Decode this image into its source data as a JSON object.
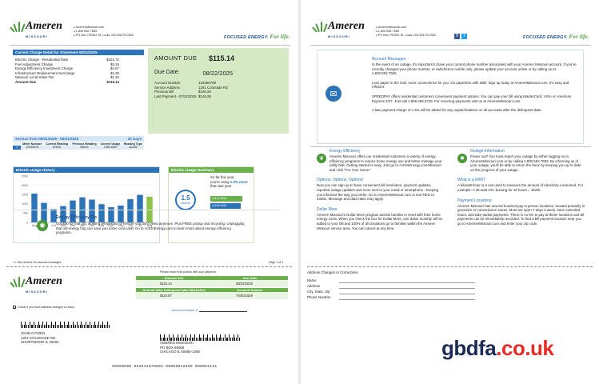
{
  "brand": {
    "name": "Ameren",
    "sub": "MISSOURI",
    "tagline_prefix": "FOCUSED ENERGY.",
    "tagline_suffix": "For life.",
    "green": "#4a9a3a",
    "blue": "#2c73b8"
  },
  "contact": [
    "AmerenMissouri.com",
    "1.800.552.7583",
    "PO Box 790352 St. Louis, MO 63179-0352"
  ],
  "current_charges": {
    "title": "Current Charge Detail for Statement 08/31/2025",
    "rows": [
      {
        "label": "Electric Charge - Residential Rate",
        "value": "$101.71"
      },
      {
        "label": "Fuel Adjustment Charge",
        "value": "$5.16"
      },
      {
        "label": "Energy Efficiency Investment Charge",
        "value": "$4.57"
      },
      {
        "label": "Infrastructure Replacement Surcharge",
        "value": "$2.36"
      },
      {
        "label": "Missouri Local Sales Tax",
        "value": "$1.34"
      },
      {
        "label": "Amount Due",
        "value": "$115.14"
      }
    ]
  },
  "summary": {
    "amount_due_label": "AMOUNT DUE",
    "amount_due": "$115.14",
    "due_date_label": "Due Date:",
    "due_date": "08/22/2025",
    "rows": [
      {
        "label": "Account Number",
        "value": "123456789"
      },
      {
        "label": "Service Address",
        "value": "1201 Colonade Rd"
      },
      {
        "label": "Previous Bill",
        "value": "$146.29"
      },
      {
        "label": "Last Payment - 07/22/2025",
        "value": "$146.29"
      }
    ]
  },
  "service": {
    "title": "Service from 08/01/2025 - 08/31/2025",
    "days": "30 Days",
    "headers": [
      "Meter Number",
      "Current Reading",
      "Previous Reading",
      "Current Usage",
      "Reading Type"
    ],
    "row_index": "1",
    "row": [
      "12345678",
      "87816",
      "86432",
      "1384 kWh",
      "Actual"
    ]
  },
  "usage_history": {
    "title": "Electric Usage History"
  },
  "chart_data": {
    "type": "bar",
    "categories": [
      "Aug",
      "Sep",
      "Oct",
      "Nov",
      "Dec",
      "Jan",
      "Feb",
      "Mar",
      "Apr",
      "May",
      "Jun",
      "Jul",
      "Aug"
    ],
    "values": [
      1550,
      1050,
      720,
      880,
      1180,
      1350,
      1230,
      980,
      820,
      910,
      1250,
      1480,
      1384
    ],
    "ylim": [
      0,
      2500
    ],
    "yticks": [
      "2500",
      "2000",
      "1500",
      "1000",
      "500",
      "0"
    ],
    "colors": {
      "bars": "#2c73b8",
      "highlight": "#8bc34a"
    }
  },
  "usage_summary": {
    "title": "Electric Usage Summary",
    "line1": "So far this year,",
    "line2_prefix": "you're using",
    "line2_highlight": "1.5% more",
    "line2_suffix": "than last year",
    "gauge_value": "1.5",
    "gauge_label": "USAGE",
    "bar1": "4,417 kWh",
    "bar2": "4,349 kWh"
  },
  "tip": {
    "title": "Energy Efficiency Tip",
    "text": "Got $50 for that old, working refrigerator or freezer you don't need anymore. Plus FREE pickup and recycling. Unplugging that old energy hog can save you some cool cash! Go to ActOnEnergy.com to learn more about energy efficiency programs."
  },
  "footer": {
    "reverse": ">> See reverse for account messages",
    "page": "Page 1 of 1"
  },
  "stub": {
    "return_note": "Please return this portion with your payment.",
    "amount_due_label": "Amount Due",
    "due_date_label": "Due Date",
    "amount_due": "$115.14",
    "due_date": "08/22/2025",
    "after_label": "Amount After Delinquent Date 08/22/2024",
    "account_label": "Account Number",
    "after_value": "$116.87",
    "account_value": "740521529",
    "check_note": "Check if you have address changes on back.",
    "enclosed_label": "Amount Enclosed: $",
    "customer": [
      "JOHN CITIZEN",
      "1201 COLONADE RD",
      "SHORTWOOD IL 40404"
    ],
    "remit": [
      "AMEREN MISSOURI",
      "PO BOX 88068",
      "CHICAGO IL 60680-1068"
    ],
    "micr": "50000000 003531070004 00000042850 000001151"
  },
  "messages": {
    "title": "Account Messages",
    "paragraphs": [
      "In the event of an outage, it's important to have your current phone number associated with your Ameren Missouri account. If you've recently changed your phone number, or switched to mobile only, please update your account online or by calling us at 1.800.552.7583.",
      "Less paper in the mail, more convenience for you. Go paperless with eBill. Sign up today at AmerenMissouri.com. It's easy and efficient.",
      "SPEEDPAY offers residential customers convenient payment options. You can pay your bill using MasterCard, VISA or American Express 24/7. Just call 1.866.268.3729. For recurring payments visit us at AmerenMissouri.com.",
      "A late payment charge of 1.5% will be added for any unpaid balance on all accounts after the delinquent date."
    ]
  },
  "info_left": [
    {
      "title": "Energy Efficiency",
      "text": "Ameren Missouri offers our residential customers a variety of energy efficiency programs to reduce home energy use and better manage your utility bills. Getting started is easy. Just go to ActOnEnergy.com/Missouri and click \"For Your Home.\""
    },
    {
      "title": "Options, Options, Options!",
      "text": "Now you can sign up to have convenient bill reminders, payment updates, reported outage updates and more sent to your email or smartphone - keeping you informed the way you prefer. Go to AmerenMissouri.com or text REG to 43481. Message and data rates may apply."
    },
    {
      "title": "Dollar More",
      "text": "Ameren Missouri's Dollar More program assists families in need with their home energy costs. When you check the box for Dollar More, one dollar monthly will be added to your bill and 100% of all donations go to families within the Ameren Missouri service area. You can cancel at any time."
    }
  ],
  "info_right": [
    {
      "title": "Outage Information",
      "text": "Power out? You must report your outage by either logging on to AmerenMissouri.com or by calling 1.800.552.7583. By informing us of your outage, you'll be able to return the favor by keeping you up to date on the progress of your outage."
    },
    {
      "title": "What is a kWh?",
      "text": "A kilowatt-hour is a unit used to measure the amount of electricity consumed. For example: A 25-watt CFL burning for 10 hours = 1kWh."
    },
    {
      "title": "Payment Locations",
      "text": "Ameren Missouri has several hundred pay in person locations, located primarily in groceries or convenience stores. Most are open 7 days a week, have extended hours, and take partial payments. There is no fee to pay at these locations and all payments can be immediately recorded. To find a bill payment location near you go to AmerenMissouri.com and enter your zip code."
    }
  ],
  "address_changes": {
    "title": "Address Changes or Corrections",
    "fields": [
      "Name",
      "Address",
      "City, State, Zip",
      "Phone Number"
    ]
  },
  "watermark": {
    "main": "gbdfa",
    "tld": ".co.uk"
  }
}
